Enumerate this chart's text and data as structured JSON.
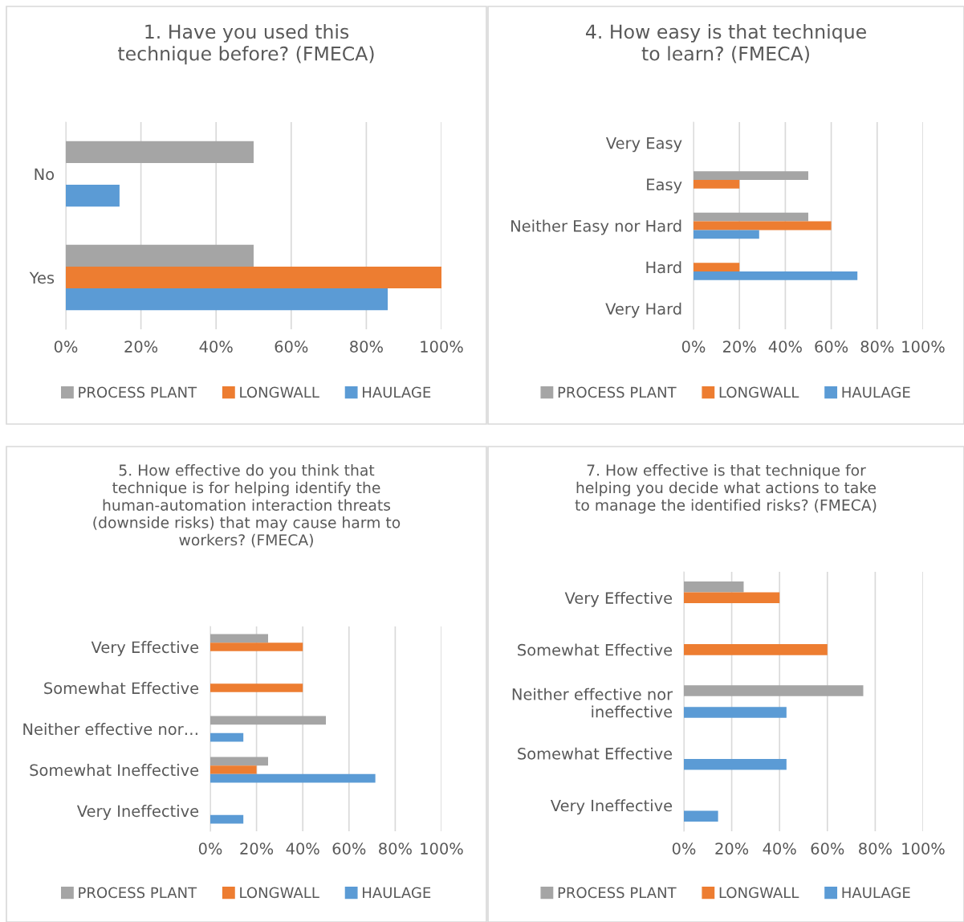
{
  "chart_data": [
    {
      "type": "bar",
      "orientation": "horizontal",
      "title": "1. Have you used this\ntechnique before? (FMECA)",
      "categories": [
        "No",
        "Yes"
      ],
      "series": [
        {
          "name": "PROCESS PLANT",
          "color": "#a5a5a5",
          "values": [
            50,
            50
          ]
        },
        {
          "name": "LONGWALL",
          "color": "#ed7d31",
          "values": [
            null,
            100
          ]
        },
        {
          "name": "HAULAGE",
          "color": "#5b9bd5",
          "values": [
            14.3,
            85.7
          ]
        }
      ],
      "xlim": [
        0,
        100
      ],
      "xticks": [
        {
          "value": 0,
          "label": "0%"
        },
        {
          "value": 20,
          "label": "20%"
        },
        {
          "value": 40,
          "label": "40%"
        },
        {
          "value": 60,
          "label": "60%"
        },
        {
          "value": 80,
          "label": "80%"
        },
        {
          "value": 100,
          "label": "100%"
        }
      ],
      "grid": "x",
      "legend": "bottom"
    },
    {
      "type": "bar",
      "orientation": "horizontal",
      "title": "4. How easy is that technique\nto learn? (FMECA)",
      "categories": [
        "Very Easy",
        "Easy",
        "Neither Easy nor Hard",
        "Hard",
        "Very Hard"
      ],
      "series": [
        {
          "name": "PROCESS PLANT",
          "color": "#a5a5a5",
          "values": [
            null,
            50,
            50,
            null,
            null
          ]
        },
        {
          "name": "LONGWALL",
          "color": "#ed7d31",
          "values": [
            null,
            20,
            60,
            20,
            null
          ]
        },
        {
          "name": "HAULAGE",
          "color": "#5b9bd5",
          "values": [
            null,
            null,
            28.6,
            71.4,
            null
          ]
        }
      ],
      "xlim": [
        0,
        100
      ],
      "xticks": [
        {
          "value": 0,
          "label": "0%"
        },
        {
          "value": 20,
          "label": "20%"
        },
        {
          "value": 40,
          "label": "40%"
        },
        {
          "value": 60,
          "label": "60%"
        },
        {
          "value": 80,
          "label": "80%"
        },
        {
          "value": 100,
          "label": "100%"
        }
      ],
      "grid": "x",
      "legend": "bottom"
    },
    {
      "type": "bar",
      "orientation": "horizontal",
      "title": "5. How effective do you think that\ntechnique is for helping identify the\nhuman-automation interaction threats\n(downside risks) that may cause harm to\nworkers? (FMECA)",
      "categories": [
        "Very Effective",
        "Somewhat Effective",
        "Neither effective nor…",
        "Somewhat Ineffective",
        "Very Ineffective"
      ],
      "series": [
        {
          "name": "PROCESS PLANT",
          "color": "#a5a5a5",
          "values": [
            25,
            null,
            50,
            25,
            null
          ]
        },
        {
          "name": "LONGWALL",
          "color": "#ed7d31",
          "values": [
            40,
            40,
            null,
            20,
            null
          ]
        },
        {
          "name": "HAULAGE",
          "color": "#5b9bd5",
          "values": [
            null,
            null,
            14.3,
            71.4,
            14.3
          ]
        }
      ],
      "xlim": [
        0,
        100
      ],
      "xticks": [
        {
          "value": 0,
          "label": "0%"
        },
        {
          "value": 20,
          "label": "20%"
        },
        {
          "value": 40,
          "label": "40%"
        },
        {
          "value": 60,
          "label": "60%"
        },
        {
          "value": 80,
          "label": "80%"
        },
        {
          "value": 100,
          "label": "100%"
        }
      ],
      "grid": "x",
      "legend": "bottom"
    },
    {
      "type": "bar",
      "orientation": "horizontal",
      "title": "7. How effective is that technique for\nhelping you decide what actions to take\nto manage the identified risks? (FMECA)",
      "categories": [
        "Very Effective",
        "Somewhat Effective",
        "Neither effective nor\nineffective",
        "Somewhat Effective",
        "Very Ineffective"
      ],
      "series": [
        {
          "name": "PROCESS PLANT",
          "color": "#a5a5a5",
          "values": [
            25,
            null,
            75,
            null,
            null
          ]
        },
        {
          "name": "LONGWALL",
          "color": "#ed7d31",
          "values": [
            40,
            60,
            null,
            null,
            null
          ]
        },
        {
          "name": "HAULAGE",
          "color": "#5b9bd5",
          "values": [
            null,
            null,
            42.9,
            42.9,
            14.3
          ]
        }
      ],
      "xlim": [
        0,
        100
      ],
      "xticks": [
        {
          "value": 0,
          "label": "0%"
        },
        {
          "value": 20,
          "label": "20%"
        },
        {
          "value": 40,
          "label": "40%"
        },
        {
          "value": 60,
          "label": "60%"
        },
        {
          "value": 80,
          "label": "80%"
        },
        {
          "value": 100,
          "label": "100%"
        }
      ],
      "grid": "x",
      "legend": "bottom"
    }
  ]
}
